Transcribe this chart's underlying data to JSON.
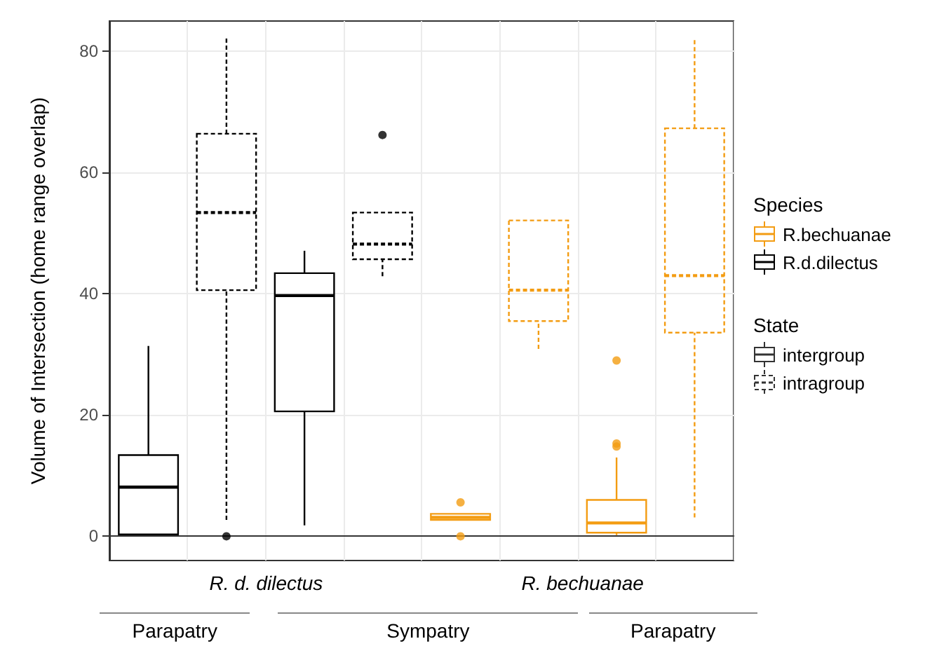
{
  "chart_data": {
    "type": "box",
    "ylabel": "Volume of Intersection (home range overlap)",
    "categories": [
      null,
      null,
      null,
      null,
      null,
      null,
      null,
      null
    ],
    "ylim": [
      -4,
      85
    ],
    "yticks": [
      0,
      20,
      40,
      60,
      80
    ],
    "grid": true,
    "legend": "right",
    "legend_title": "Species",
    "annotations": [
      "R. d. dilectus",
      "R. bechuanae",
      "Parapatry",
      "Sympatry",
      "Parapatry",
      "State",
      "intergroup",
      "intragroup"
    ],
    "series": [
      {
        "name": "R.d.dilectus",
        "color": "#000000",
        "line_style": "solid",
        "boxes": [
          {
            "low": 0.3,
            "q1": 0.3,
            "median": 8.1,
            "q3": 13.4,
            "high": 31.4
          },
          null,
          {
            "low": 1.8,
            "q1": 20.6,
            "median": 39.7,
            "q3": 43.4,
            "high": 47.1
          },
          null,
          null,
          null,
          null,
          null
        ]
      },
      {
        "color": "#000000",
        "line_style": "dashed",
        "boxes": [
          null,
          {
            "low": 2.7,
            "q1": 40.6,
            "median": 53.4,
            "q3": 66.4,
            "high": 82.4,
            "outliers": [
              0
            ]
          },
          null,
          {
            "low": 42.9,
            "q1": 45.7,
            "median": 48.2,
            "q3": 53.4,
            "high": 53.4,
            "outliers": [
              66.2
            ]
          },
          null,
          null,
          null,
          null
        ]
      },
      {
        "name": "R.bechuanae",
        "color": "#f39c12",
        "line_style": "solid",
        "boxes": [
          null,
          null,
          null,
          null,
          {
            "low": 2.7,
            "q1": 2.7,
            "median": 3.1,
            "q3": 3.7,
            "high": 3.7,
            "outliers": [
              0,
              5.6
            ]
          },
          null,
          {
            "low": 0.2,
            "q1": 0.6,
            "median": 2.2,
            "q3": 6,
            "high": 13,
            "outliers": [
              14.8,
              15.3,
              29
            ]
          },
          null
        ]
      },
      {
        "color": "#f39c12",
        "line_style": "dashed",
        "boxes": [
          null,
          null,
          null,
          null,
          null,
          {
            "low": 30.9,
            "q1": 35.5,
            "median": 40.6,
            "q3": 52.1,
            "high": 52.1
          },
          null,
          {
            "low": 3.1,
            "q1": 33.6,
            "median": 43,
            "q3": 67.3,
            "high": 82.3
          }
        ]
      }
    ]
  }
}
